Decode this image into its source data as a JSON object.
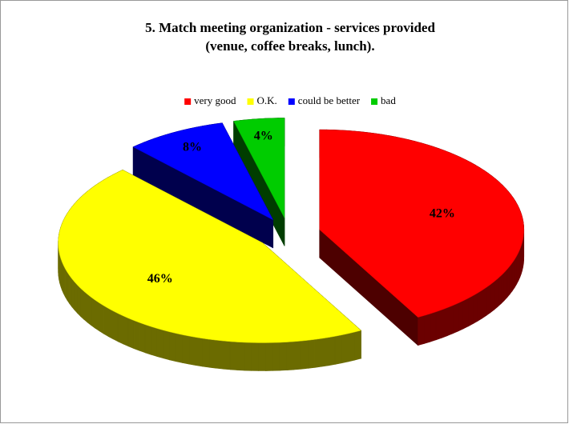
{
  "chart_data": {
    "type": "pie3d",
    "title": [
      "5. Match meeting organization - services provided",
      "(venue, coffee breaks, lunch)."
    ],
    "categories": [
      "very good",
      "O.K.",
      "could be better",
      "bad"
    ],
    "values": [
      42,
      46,
      8,
      4
    ],
    "value_labels": [
      "42%",
      "46%",
      "8%",
      "4%"
    ],
    "colors": [
      "#ff0000",
      "#ffff00",
      "#0000ff",
      "#00cc00"
    ],
    "legend": "top"
  }
}
